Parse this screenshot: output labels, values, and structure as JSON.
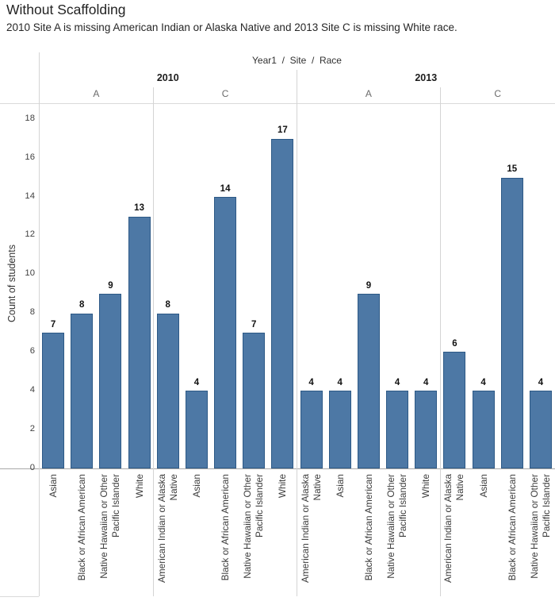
{
  "page": {
    "title": "Without Scaffolding",
    "subtitle": "2010 Site A is missing American Indian or Alaska Native and 2013 Site C is missing White race."
  },
  "chart": {
    "column_header": "Year1  /  Site  /  Race",
    "y_axis_title": "Count of students"
  },
  "colors": {
    "bar_fill": "#4d78a5",
    "bar_border": "#2d5986",
    "panel_line": "#d4d4d4",
    "zero_line": "#a8a8a8"
  },
  "chart_data": {
    "type": "bar",
    "title": "Without Scaffolding",
    "xlabel": "Year1 / Site / Race",
    "ylabel": "Count of students",
    "ylim": [
      0,
      18
    ],
    "y_ticks": [
      0,
      2,
      4,
      6,
      8,
      10,
      12,
      14,
      16,
      18
    ],
    "grid": false,
    "legend": "none",
    "hierarchy": [
      "Year1",
      "Site",
      "Race"
    ],
    "groups": [
      {
        "year": "2010",
        "site": "A",
        "bars": [
          {
            "race": "Asian",
            "label": "Asian",
            "value": 7
          },
          {
            "race": "Black or African American",
            "label": "Black or African American",
            "value": 8
          },
          {
            "race": "Native Hawaiian or Other Pacific Islander",
            "label": "Native Hawaiian or Other\nPacific Islander",
            "value": 9
          },
          {
            "race": "White",
            "label": "White",
            "value": 13
          }
        ]
      },
      {
        "year": "2010",
        "site": "C",
        "bars": [
          {
            "race": "American Indian or Alaska Native",
            "label": "American Indian or Alaska\nNative",
            "value": 8
          },
          {
            "race": "Asian",
            "label": "Asian",
            "value": 4
          },
          {
            "race": "Black or African American",
            "label": "Black or African American",
            "value": 14
          },
          {
            "race": "Native Hawaiian or Other Pacific Islander",
            "label": "Native Hawaiian or Other\nPacific Islander",
            "value": 7
          },
          {
            "race": "White",
            "label": "White",
            "value": 17
          }
        ]
      },
      {
        "year": "2013",
        "site": "A",
        "bars": [
          {
            "race": "American Indian or Alaska Native",
            "label": "American Indian or Alaska\nNative",
            "value": 4
          },
          {
            "race": "Asian",
            "label": "Asian",
            "value": 4
          },
          {
            "race": "Black or African American",
            "label": "Black or African American",
            "value": 9
          },
          {
            "race": "Native Hawaiian or Other Pacific Islander",
            "label": "Native Hawaiian or Other\nPacific Islander",
            "value": 4
          },
          {
            "race": "White",
            "label": "White",
            "value": 4
          }
        ]
      },
      {
        "year": "2013",
        "site": "C",
        "bars": [
          {
            "race": "American Indian or Alaska Native",
            "label": "American Indian or Alaska\nNative",
            "value": 6
          },
          {
            "race": "Asian",
            "label": "Asian",
            "value": 4
          },
          {
            "race": "Black or African American",
            "label": "Black or African American",
            "value": 15
          },
          {
            "race": "Native Hawaiian or Other Pacific Islander",
            "label": "Native Hawaiian or Other\nPacific Islander",
            "value": 4
          }
        ]
      }
    ]
  }
}
